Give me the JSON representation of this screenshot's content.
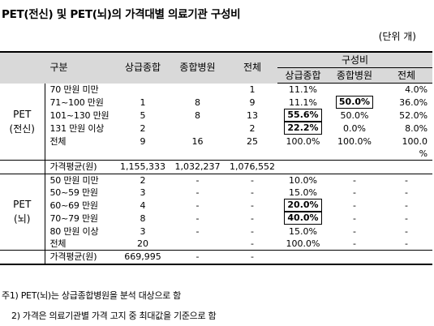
{
  "title": "PET(전신) 및 PET(뇌)의 가격대별 의료기관 구성비",
  "unit": "(단위 개)",
  "header": {
    "group": "구분",
    "col_tertiary": "상급종합",
    "col_general": "종합병원",
    "col_total": "전체",
    "ratio_group": "구성비",
    "ratio_tertiary": "상급종합",
    "ratio_general": "종합병원",
    "ratio_total": "전체"
  },
  "sections": [
    {
      "label_line1": "PET",
      "label_line2": "(전신)",
      "rows": [
        {
          "range": "70 만원 미만",
          "t": "",
          "g": "",
          "all": "1",
          "rt": "11.1%",
          "rg": "",
          "rall": "4.0%"
        },
        {
          "range": "71~100 만원",
          "t": "1",
          "g": "8",
          "all": "9",
          "rt": "11.1%",
          "rg": "50.0%",
          "rall": "36.0%"
        },
        {
          "range": "101~130 만원",
          "t": "5",
          "g": "8",
          "all": "13",
          "rt": "55.6%",
          "rg": "50.0%",
          "rall": "52.0%"
        },
        {
          "range": "131 만원 이상",
          "t": "2",
          "g": "",
          "all": "2",
          "rt": "22.2%",
          "rg": "0.0%",
          "rall": "8.0%"
        },
        {
          "range": "전체",
          "t": "9",
          "g": "16",
          "all": "25",
          "rt": "100.0%",
          "rg": "100.0%",
          "rall": "100.0"
        },
        {
          "range": "",
          "t": "",
          "g": "",
          "all": "",
          "rt": "",
          "rg": "",
          "rall": "%"
        }
      ],
      "avg_label": "가격평균(원)",
      "avg_t": "1,155,333",
      "avg_g": "1,032,237",
      "avg_all": "1,076,552"
    },
    {
      "label_line1": "PET",
      "label_line2": "(뇌)",
      "rows": [
        {
          "range": "50 만원 미만",
          "t": "2",
          "g": "-",
          "all": "-",
          "rt": "10.0%",
          "rg": "-",
          "rall": "-"
        },
        {
          "range": "50~59 만원",
          "t": "3",
          "g": "-",
          "all": "-",
          "rt": "15.0%",
          "rg": "-",
          "rall": "-"
        },
        {
          "range": "60~69 만원",
          "t": "4",
          "g": "-",
          "all": "-",
          "rt": "20.0%",
          "rg": "-",
          "rall": "-"
        },
        {
          "range": "70~79 만원",
          "t": "8",
          "g": "-",
          "all": "-",
          "rt": "40.0%",
          "rg": "-",
          "rall": "-"
        },
        {
          "range": "80 만원 이상",
          "t": "3",
          "g": "-",
          "all": "-",
          "rt": "15.0%",
          "rg": "-",
          "rall": "-"
        },
        {
          "range": "전체",
          "t": "20",
          "g": "",
          "all": "-",
          "rt": "100.0%",
          "rg": "-",
          "rall": "-"
        }
      ],
      "avg_label": "가격평균(원)",
      "avg_t": "669,995",
      "avg_g": "-",
      "avg_all": "-"
    }
  ],
  "notes": [
    "주1) PET(뇌)는 상급종합병원을 분석 대상으로 함",
    "2) 가격은 의료기관별 가격 고지 중 최대값을 기준으로 함"
  ]
}
